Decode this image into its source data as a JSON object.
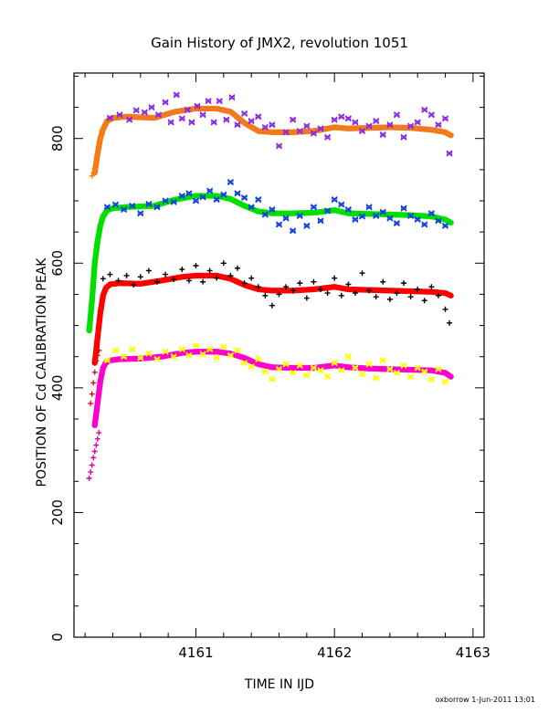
{
  "chart_data": {
    "type": "scatter",
    "title": "Gain History of JMX2, revolution 1051",
    "xlabel": "TIME IN IJD",
    "ylabel": "POSITION OF Cd CALIBRATION PEAK",
    "footer": "oxborrow   1-Jun-2011 13:01",
    "xlim": [
      4160.12,
      4163.08
    ],
    "ylim": [
      0,
      905
    ],
    "x_ticks": [
      4161,
      4162,
      4163
    ],
    "x_tick_labels": [
      "4161",
      "4162",
      "4163"
    ],
    "y_ticks": [
      0,
      200,
      400,
      600,
      800
    ],
    "y_tick_labels": [
      "0",
      "200",
      "400",
      "600",
      "800"
    ],
    "grid": false,
    "legend": "none",
    "series": [
      {
        "color": "#f07a1c",
        "marker": "thick-line",
        "x": [
          4160.27,
          4160.29,
          4160.31,
          4160.33,
          4160.36,
          4160.4,
          4160.5,
          4160.7,
          4160.85,
          4161.0,
          4161.15,
          4161.25,
          4161.35,
          4161.45,
          4161.55,
          4161.7,
          4161.85,
          4162.0,
          4162.1,
          4162.25,
          4162.4,
          4162.55,
          4162.7,
          4162.8,
          4162.84
        ],
        "y": [
          745,
          775,
          800,
          815,
          828,
          833,
          835,
          833,
          843,
          848,
          848,
          843,
          825,
          812,
          810,
          810,
          812,
          818,
          816,
          817,
          818,
          817,
          814,
          810,
          805
        ]
      },
      {
        "color": "#ff8000",
        "marker": "cross",
        "x": [
          4160.25,
          4160.26,
          4160.27,
          4160.28,
          4160.29,
          4160.3,
          4160.31,
          4160.32
        ],
        "y": [
          740,
          745,
          752,
          762,
          775,
          788,
          800,
          812
        ]
      },
      {
        "color": "#8a2be2",
        "marker": "x",
        "x": [
          4160.38,
          4160.45,
          4160.52,
          4160.57,
          4160.63,
          4160.68,
          4160.73,
          4160.78,
          4160.82,
          4160.86,
          4160.9,
          4160.94,
          4160.97,
          4161.01,
          4161.05,
          4161.09,
          4161.13,
          4161.17,
          4161.22,
          4161.26,
          4161.3,
          4161.35,
          4161.4,
          4161.45,
          4161.5,
          4161.55,
          4161.6,
          4161.65,
          4161.7,
          4161.75,
          4161.8,
          4161.85,
          4161.9,
          4161.95,
          4162.0,
          4162.05,
          4162.1,
          4162.15,
          4162.2,
          4162.25,
          4162.3,
          4162.35,
          4162.4,
          4162.45,
          4162.5,
          4162.55,
          4162.6,
          4162.65,
          4162.7,
          4162.75,
          4162.8,
          4162.83
        ],
        "y": [
          833,
          838,
          830,
          845,
          842,
          850,
          838,
          858,
          826,
          870,
          832,
          846,
          826,
          852,
          838,
          860,
          826,
          860,
          830,
          866,
          822,
          840,
          828,
          835,
          818,
          822,
          788,
          810,
          830,
          812,
          820,
          808,
          816,
          802,
          830,
          835,
          832,
          826,
          812,
          820,
          828,
          806,
          822,
          838,
          802,
          820,
          826,
          846,
          838,
          822,
          832,
          776
        ]
      },
      {
        "color": "#00e000",
        "marker": "thick-line",
        "x": [
          4160.23,
          4160.25,
          4160.27,
          4160.29,
          4160.31,
          4160.33,
          4160.36,
          4160.4,
          4160.5,
          4160.7,
          4160.85,
          4161.0,
          4161.15,
          4161.25,
          4161.35,
          4161.45,
          4161.55,
          4161.7,
          4161.85,
          4162.0,
          4162.1,
          4162.25,
          4162.4,
          4162.55,
          4162.7,
          4162.8,
          4162.84
        ],
        "y": [
          492,
          540,
          600,
          635,
          660,
          675,
          685,
          688,
          690,
          692,
          702,
          708,
          708,
          703,
          692,
          683,
          680,
          680,
          681,
          685,
          680,
          679,
          678,
          677,
          675,
          670,
          665
        ]
      },
      {
        "color": "#1040e0",
        "marker": "x",
        "x": [
          4160.36,
          4160.42,
          4160.48,
          4160.54,
          4160.6,
          4160.66,
          4160.72,
          4160.78,
          4160.84,
          4160.9,
          4160.95,
          4161.0,
          4161.05,
          4161.1,
          4161.15,
          4161.2,
          4161.25,
          4161.3,
          4161.35,
          4161.4,
          4161.45,
          4161.5,
          4161.55,
          4161.6,
          4161.65,
          4161.7,
          4161.75,
          4161.8,
          4161.85,
          4161.9,
          4161.95,
          4162.0,
          4162.05,
          4162.1,
          4162.15,
          4162.2,
          4162.25,
          4162.3,
          4162.35,
          4162.4,
          4162.45,
          4162.5,
          4162.55,
          4162.6,
          4162.65,
          4162.7,
          4162.75,
          4162.8
        ],
        "y": [
          690,
          694,
          686,
          692,
          680,
          695,
          690,
          700,
          698,
          708,
          712,
          700,
          706,
          716,
          702,
          710,
          730,
          712,
          705,
          690,
          702,
          678,
          686,
          662,
          672,
          652,
          676,
          660,
          690,
          668,
          684,
          702,
          694,
          686,
          670,
          675,
          690,
          676,
          682,
          672,
          664,
          688,
          676,
          670,
          662,
          680,
          668,
          660
        ]
      },
      {
        "color": "#ff0000",
        "marker": "thick-line",
        "x": [
          4160.27,
          4160.29,
          4160.31,
          4160.33,
          4160.35,
          4160.38,
          4160.45,
          4160.6,
          4160.75,
          4160.9,
          4161.0,
          4161.15,
          4161.25,
          4161.35,
          4161.45,
          4161.55,
          4161.7,
          4161.85,
          4162.0,
          4162.1,
          4162.25,
          4162.4,
          4162.55,
          4162.7,
          4162.8,
          4162.84
        ],
        "y": [
          440,
          480,
          520,
          548,
          560,
          566,
          568,
          567,
          572,
          578,
          580,
          580,
          575,
          565,
          558,
          556,
          556,
          558,
          562,
          558,
          557,
          556,
          555,
          554,
          552,
          548
        ]
      },
      {
        "color": "#e01010",
        "marker": "cross",
        "x": [
          4160.24,
          4160.25,
          4160.26,
          4160.27,
          4160.28,
          4160.29,
          4160.3
        ],
        "y": [
          375,
          390,
          408,
          425,
          443,
          452,
          460
        ]
      },
      {
        "color": "#000000",
        "marker": "cross",
        "x": [
          4160.33,
          4160.38,
          4160.44,
          4160.5,
          4160.55,
          4160.6,
          4160.66,
          4160.72,
          4160.78,
          4160.84,
          4160.9,
          4160.95,
          4161.0,
          4161.05,
          4161.1,
          4161.15,
          4161.2,
          4161.25,
          4161.3,
          4161.35,
          4161.4,
          4161.45,
          4161.5,
          4161.55,
          4161.6,
          4161.65,
          4161.7,
          4161.75,
          4161.8,
          4161.85,
          4161.9,
          4161.95,
          4162.0,
          4162.05,
          4162.1,
          4162.15,
          4162.2,
          4162.25,
          4162.3,
          4162.35,
          4162.4,
          4162.45,
          4162.5,
          4162.55,
          4162.6,
          4162.65,
          4162.7,
          4162.75,
          4162.8,
          4162.83
        ],
        "y": [
          575,
          582,
          572,
          580,
          565,
          578,
          588,
          570,
          582,
          574,
          590,
          572,
          596,
          570,
          588,
          576,
          600,
          580,
          592,
          568,
          576,
          562,
          548,
          532,
          550,
          562,
          556,
          568,
          544,
          570,
          558,
          552,
          576,
          548,
          566,
          552,
          584,
          556,
          546,
          570,
          542,
          552,
          568,
          546,
          558,
          540,
          562,
          548,
          526,
          504
        ]
      },
      {
        "color": "#ff00cc",
        "marker": "thick-line",
        "x": [
          4160.27,
          4160.29,
          4160.31,
          4160.33,
          4160.35,
          4160.38,
          4160.45,
          4160.6,
          4160.75,
          4160.9,
          4161.0,
          4161.15,
          4161.25,
          4161.35,
          4161.45,
          4161.55,
          4161.7,
          4161.85,
          4162.0,
          4162.1,
          4162.25,
          4162.4,
          4162.55,
          4162.7,
          4162.8,
          4162.84
        ],
        "y": [
          340,
          375,
          410,
          432,
          440,
          444,
          446,
          447,
          450,
          456,
          458,
          458,
          455,
          448,
          438,
          433,
          432,
          432,
          436,
          433,
          431,
          430,
          429,
          428,
          424,
          418
        ]
      },
      {
        "color": "#e000a0",
        "marker": "cross",
        "x": [
          4160.23,
          4160.24,
          4160.25,
          4160.26,
          4160.27,
          4160.28,
          4160.29,
          4160.3
        ],
        "y": [
          255,
          265,
          276,
          288,
          298,
          308,
          318,
          328
        ]
      },
      {
        "color": "#ffff00",
        "marker": "x",
        "x": [
          4160.36,
          4160.42,
          4160.48,
          4160.54,
          4160.6,
          4160.66,
          4160.72,
          4160.78,
          4160.84,
          4160.9,
          4160.95,
          4161.0,
          4161.05,
          4161.1,
          4161.15,
          4161.2,
          4161.25,
          4161.3,
          4161.35,
          4161.4,
          4161.45,
          4161.5,
          4161.55,
          4161.6,
          4161.65,
          4161.7,
          4161.75,
          4161.8,
          4161.85,
          4161.9,
          4161.95,
          4162.0,
          4162.05,
          4162.1,
          4162.15,
          4162.2,
          4162.25,
          4162.3,
          4162.35,
          4162.4,
          4162.45,
          4162.5,
          4162.55,
          4162.6,
          4162.65,
          4162.7,
          4162.75,
          4162.8
        ],
        "y": [
          444,
          460,
          450,
          462,
          448,
          455,
          446,
          458,
          450,
          462,
          452,
          468,
          454,
          462,
          448,
          466,
          452,
          460,
          440,
          434,
          446,
          426,
          414,
          430,
          438,
          424,
          436,
          420,
          432,
          428,
          418,
          440,
          428,
          450,
          432,
          422,
          438,
          416,
          444,
          430,
          424,
          436,
          418,
          432,
          426,
          414,
          430,
          410
        ]
      }
    ]
  }
}
